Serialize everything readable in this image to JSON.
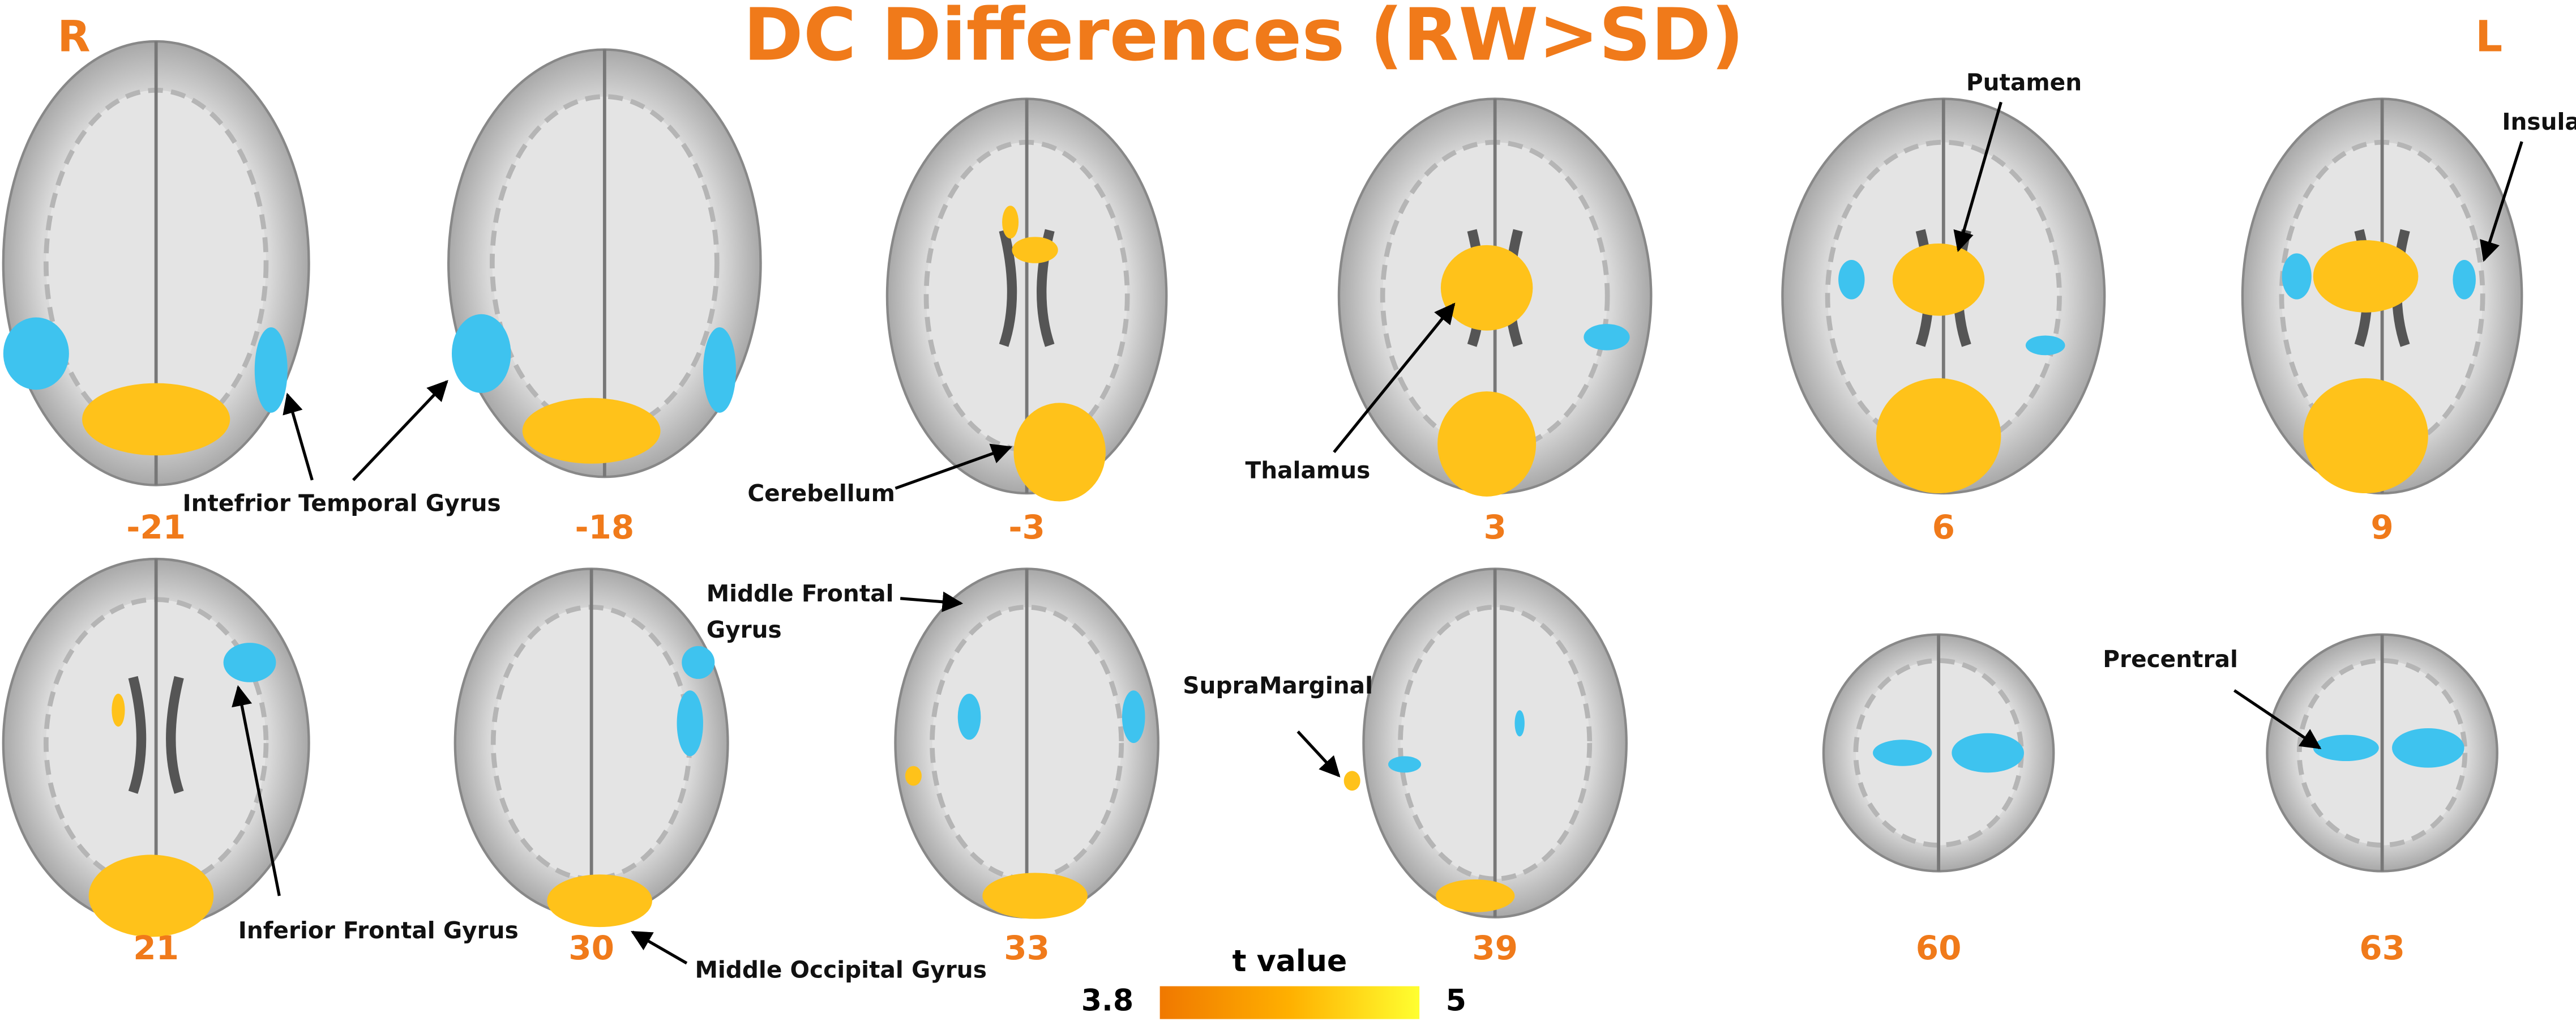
{
  "title": "DC Differences (RW>SD)",
  "left_label": "R",
  "right_label": "L",
  "slices": [
    -21,
    -18,
    -3,
    3,
    6,
    9,
    21,
    30,
    33,
    39,
    60,
    63
  ],
  "annotations": [
    {
      "lines": [
        "Intefrior Temporal Gyrus"
      ]
    },
    {
      "lines": [
        "Cerebellum"
      ]
    },
    {
      "lines": [
        "Thalamus"
      ]
    },
    {
      "lines": [
        "Putamen"
      ]
    },
    {
      "lines": [
        "Insula"
      ]
    },
    {
      "lines": [
        "Middle Frontal",
        "Gyrus"
      ]
    },
    {
      "lines": [
        "SupraMarginal"
      ]
    },
    {
      "lines": [
        "Precentral"
      ]
    },
    {
      "lines": [
        "Inferior Frontal Gyrus"
      ]
    },
    {
      "lines": [
        "Middle Occipital Gyrus"
      ]
    }
  ],
  "colorbar": {
    "title": "t value",
    "min": 3.8,
    "max": 5
  }
}
